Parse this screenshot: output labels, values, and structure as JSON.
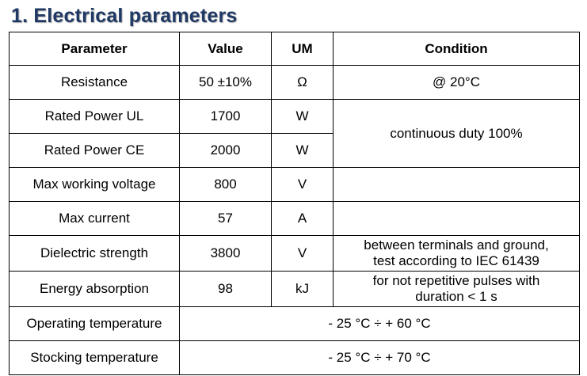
{
  "heading": "1. Electrical parameters",
  "table": {
    "headers": [
      "Parameter",
      "Value",
      "UM",
      "Condition"
    ],
    "rows": [
      {
        "parameter": "Resistance",
        "value": "50 ±10%",
        "um": "Ω",
        "condition": "@ 20°C"
      },
      {
        "parameter": "Rated Power UL",
        "value": "1700",
        "um": "W",
        "condition": "continuous duty 100%"
      },
      {
        "parameter": "Rated Power CE",
        "value": "2000",
        "um": "W"
      },
      {
        "parameter": "Max working voltage",
        "value": "800",
        "um": "V",
        "condition": ""
      },
      {
        "parameter": "Max current",
        "value": "57",
        "um": "A",
        "condition": ""
      },
      {
        "parameter": "Dielectric strength",
        "value": "3800",
        "um": "V",
        "condition_line1": "between terminals and ground,",
        "condition_line2": "test according to IEC 61439"
      },
      {
        "parameter": "Energy absorption",
        "value": "98",
        "um": "kJ",
        "condition_line1": "for not repetitive pulses with",
        "condition_line2": "duration < 1 s"
      },
      {
        "parameter": "Operating temperature",
        "range": "- 25 °C ÷ + 60 °C"
      },
      {
        "parameter": "Stocking temperature",
        "range": "- 25 °C ÷ + 70 °C"
      }
    ]
  }
}
